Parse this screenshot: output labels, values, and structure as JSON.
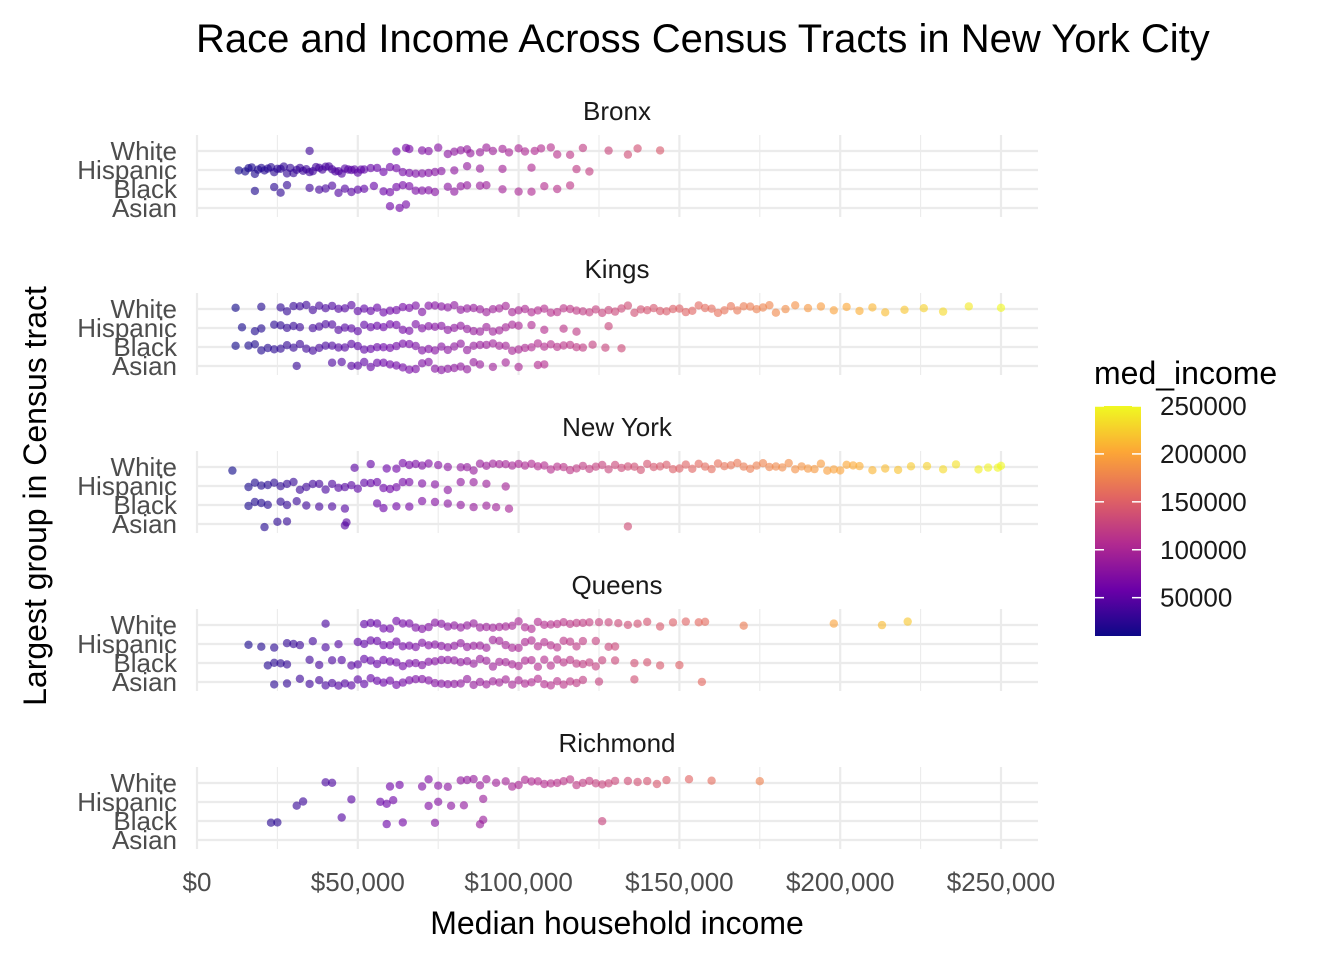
{
  "chart_data": {
    "type": "scatter",
    "title": "Race and Income Across Census Tracts in New York City",
    "xlabel": "Median household income",
    "ylabel": "Largest group in Census tract",
    "xlim": [
      0,
      262000
    ],
    "x_ticks": [
      0,
      50000,
      100000,
      150000,
      200000,
      250000
    ],
    "x_tick_labels": [
      "$0",
      "$50,000",
      "$100,000",
      "$150,000",
      "$200,000",
      "$250,000"
    ],
    "categories": [
      "White",
      "Hispanic",
      "Black",
      "Asian"
    ],
    "grid": true,
    "legend": {
      "title": "med_income",
      "placement": "right",
      "min": 10000,
      "max": 250000,
      "ticks": [
        50000,
        100000,
        150000,
        200000,
        250000
      ],
      "tick_labels": [
        "50000",
        "100000",
        "150000",
        "200000",
        "250000"
      ],
      "palette": [
        "#0d0887",
        "#6a00a8",
        "#b12a90",
        "#e16462",
        "#fca636",
        "#f0f921"
      ]
    },
    "facets": [
      {
        "name": "Bronx",
        "points": {
          "White": [
            35000,
            62000,
            65000,
            66000,
            70000,
            72000,
            75000,
            78000,
            80000,
            82000,
            84000,
            85000,
            88000,
            90000,
            92000,
            95000,
            97000,
            100000,
            102000,
            105000,
            107000,
            110000,
            112000,
            116000,
            120000,
            128000,
            134000,
            137000,
            144000
          ],
          "Hispanic": [
            13000,
            15000,
            16000,
            17000,
            18000,
            19000,
            20000,
            21000,
            22000,
            23000,
            24000,
            25000,
            26000,
            27000,
            28000,
            29000,
            30000,
            31000,
            32000,
            33000,
            34000,
            35000,
            36000,
            37000,
            38000,
            39000,
            40000,
            41000,
            42000,
            43000,
            44000,
            45000,
            46000,
            47000,
            48000,
            49000,
            50000,
            51000,
            52000,
            54000,
            56000,
            58000,
            60000,
            62000,
            64000,
            66000,
            68000,
            70000,
            72000,
            74000,
            76000,
            80000,
            84000,
            88000,
            95000,
            104000,
            118000,
            122000
          ],
          "Black": [
            18000,
            24000,
            26000,
            28000,
            35000,
            38000,
            40000,
            42000,
            44000,
            46000,
            48000,
            50000,
            52000,
            55000,
            58000,
            60000,
            62000,
            64000,
            66000,
            68000,
            70000,
            72000,
            74000,
            78000,
            80000,
            82000,
            84000,
            88000,
            90000,
            95000,
            100000,
            104000,
            108000,
            112000,
            116000
          ],
          "Asian": [
            60000,
            63000,
            65000
          ]
        }
      },
      {
        "name": "Kings",
        "points": {
          "White": [
            12000,
            20000,
            26000,
            28000,
            30000,
            32000,
            34000,
            36000,
            38000,
            40000,
            42000,
            44000,
            46000,
            48000,
            50000,
            52000,
            54000,
            56000,
            58000,
            60000,
            62000,
            64000,
            66000,
            68000,
            70000,
            72000,
            74000,
            76000,
            78000,
            80000,
            82000,
            84000,
            86000,
            88000,
            90000,
            92000,
            94000,
            96000,
            98000,
            100000,
            102000,
            104000,
            106000,
            108000,
            110000,
            112000,
            114000,
            116000,
            118000,
            120000,
            122000,
            124000,
            126000,
            128000,
            130000,
            132000,
            134000,
            136000,
            138000,
            140000,
            142000,
            144000,
            146000,
            148000,
            150000,
            152000,
            154000,
            156000,
            158000,
            160000,
            162000,
            164000,
            166000,
            168000,
            170000,
            172000,
            174000,
            176000,
            178000,
            180000,
            183000,
            186000,
            190000,
            194000,
            198000,
            202000,
            206000,
            210000,
            214000,
            220000,
            226000,
            232000,
            240000,
            250000
          ],
          "Hispanic": [
            14000,
            18000,
            20000,
            24000,
            26000,
            28000,
            30000,
            32000,
            36000,
            38000,
            40000,
            42000,
            44000,
            46000,
            48000,
            50000,
            52000,
            54000,
            56000,
            58000,
            60000,
            62000,
            64000,
            66000,
            68000,
            70000,
            72000,
            74000,
            76000,
            78000,
            80000,
            82000,
            84000,
            86000,
            88000,
            90000,
            92000,
            94000,
            96000,
            98000,
            100000,
            104000,
            108000,
            114000,
            118000,
            128000
          ],
          "Black": [
            12000,
            16000,
            18000,
            20000,
            22000,
            24000,
            26000,
            28000,
            30000,
            32000,
            34000,
            36000,
            38000,
            40000,
            42000,
            44000,
            46000,
            48000,
            50000,
            52000,
            54000,
            56000,
            58000,
            60000,
            62000,
            64000,
            66000,
            68000,
            70000,
            72000,
            74000,
            76000,
            78000,
            80000,
            82000,
            84000,
            86000,
            88000,
            90000,
            92000,
            94000,
            96000,
            98000,
            100000,
            102000,
            104000,
            106000,
            108000,
            110000,
            112000,
            114000,
            116000,
            118000,
            120000,
            123000,
            127000,
            132000
          ],
          "Asian": [
            31000,
            42000,
            45000,
            48000,
            50000,
            52000,
            54000,
            56000,
            58000,
            60000,
            62000,
            64000,
            66000,
            68000,
            70000,
            72000,
            74000,
            76000,
            78000,
            80000,
            82000,
            84000,
            86000,
            88000,
            92000,
            96000,
            100000,
            106000,
            108000
          ]
        }
      },
      {
        "name": "New York",
        "points": {
          "White": [
            11000,
            49000,
            54000,
            59000,
            62000,
            64000,
            66000,
            68000,
            70000,
            72000,
            75000,
            78000,
            82000,
            84000,
            86000,
            88000,
            90000,
            92000,
            94000,
            96000,
            98000,
            100000,
            102000,
            104000,
            106000,
            108000,
            110000,
            112000,
            114000,
            116000,
            118000,
            120000,
            122000,
            124000,
            126000,
            128000,
            130000,
            132000,
            134000,
            136000,
            138000,
            140000,
            142000,
            144000,
            146000,
            148000,
            150000,
            152000,
            154000,
            156000,
            158000,
            160000,
            162000,
            164000,
            166000,
            168000,
            170000,
            172000,
            174000,
            176000,
            178000,
            180000,
            182000,
            184000,
            186000,
            188000,
            190000,
            192000,
            194000,
            196000,
            198000,
            200000,
            202000,
            204000,
            206000,
            210000,
            214000,
            218000,
            222000,
            227000,
            232000,
            236000,
            243000,
            246000,
            249000,
            250000
          ],
          "Hispanic": [
            16000,
            18000,
            20000,
            22000,
            24000,
            26000,
            28000,
            30000,
            32000,
            34000,
            36000,
            38000,
            40000,
            42000,
            44000,
            46000,
            48000,
            50000,
            52000,
            54000,
            56000,
            58000,
            60000,
            62000,
            64000,
            66000,
            70000,
            74000,
            78000,
            82000,
            86000,
            90000,
            96000
          ],
          "Black": [
            16000,
            18000,
            20000,
            22000,
            26000,
            28000,
            31000,
            34000,
            38000,
            42000,
            46000,
            56000,
            58000,
            62000,
            66000,
            70000,
            74000,
            78000,
            82000,
            86000,
            90000,
            93000,
            97000
          ],
          "Asian": [
            21000,
            25000,
            28000,
            46000,
            46500,
            134000
          ]
        }
      },
      {
        "name": "Queens",
        "points": {
          "White": [
            40000,
            52000,
            54000,
            56000,
            58000,
            60000,
            62000,
            64000,
            66000,
            68000,
            70000,
            72000,
            74000,
            76000,
            78000,
            80000,
            82000,
            84000,
            86000,
            88000,
            90000,
            92000,
            94000,
            96000,
            98000,
            100000,
            102000,
            104000,
            106000,
            108000,
            110000,
            112000,
            114000,
            116000,
            118000,
            120000,
            122000,
            125000,
            128000,
            131000,
            134000,
            137000,
            140000,
            144000,
            148000,
            152000,
            156000,
            158000,
            170000,
            198000,
            213000,
            221000
          ],
          "Hispanic": [
            16000,
            20000,
            24000,
            28000,
            30000,
            32000,
            36000,
            40000,
            44000,
            50000,
            52000,
            54000,
            56000,
            58000,
            60000,
            62000,
            64000,
            66000,
            68000,
            70000,
            72000,
            74000,
            76000,
            78000,
            80000,
            82000,
            84000,
            86000,
            88000,
            90000,
            92000,
            94000,
            96000,
            98000,
            100000,
            102000,
            104000,
            106000,
            108000,
            110000,
            112000,
            114000,
            116000,
            118000,
            120000,
            124000,
            128000,
            130000
          ],
          "Black": [
            22000,
            24000,
            26000,
            28000,
            35000,
            38000,
            42000,
            45000,
            48000,
            50000,
            52000,
            54000,
            56000,
            58000,
            60000,
            62000,
            64000,
            66000,
            68000,
            70000,
            72000,
            74000,
            76000,
            78000,
            80000,
            82000,
            84000,
            86000,
            88000,
            90000,
            92000,
            94000,
            96000,
            98000,
            100000,
            102000,
            104000,
            106000,
            108000,
            110000,
            112000,
            114000,
            116000,
            118000,
            120000,
            122000,
            124000,
            126000,
            130000,
            136000,
            140000,
            144000,
            150000
          ],
          "Asian": [
            24000,
            28000,
            32000,
            35000,
            38000,
            40000,
            42000,
            44000,
            46000,
            48000,
            50000,
            52000,
            54000,
            56000,
            58000,
            60000,
            62000,
            64000,
            66000,
            68000,
            70000,
            72000,
            74000,
            76000,
            78000,
            80000,
            82000,
            84000,
            86000,
            88000,
            90000,
            92000,
            94000,
            96000,
            98000,
            100000,
            102000,
            104000,
            106000,
            108000,
            110000,
            112000,
            114000,
            116000,
            118000,
            120000,
            125000,
            136000,
            157000
          ]
        }
      },
      {
        "name": "Richmond",
        "points": {
          "White": [
            40000,
            42000,
            60000,
            63000,
            70000,
            72000,
            75000,
            78000,
            82000,
            84000,
            86000,
            88000,
            90000,
            93000,
            96000,
            98000,
            100000,
            102000,
            104000,
            106000,
            108000,
            110000,
            112000,
            114000,
            116000,
            118000,
            120000,
            122000,
            124000,
            126000,
            128000,
            130000,
            134000,
            137000,
            140000,
            143000,
            146000,
            153000,
            160000,
            175000
          ],
          "Hispanic": [
            31000,
            33000,
            48000,
            57000,
            59000,
            61000,
            72000,
            75000,
            79000,
            83000,
            89000
          ],
          "Black": [
            23000,
            25000,
            45000,
            59000,
            64000,
            74000,
            88000,
            89000,
            126000
          ],
          "Asian": []
        }
      }
    ]
  }
}
